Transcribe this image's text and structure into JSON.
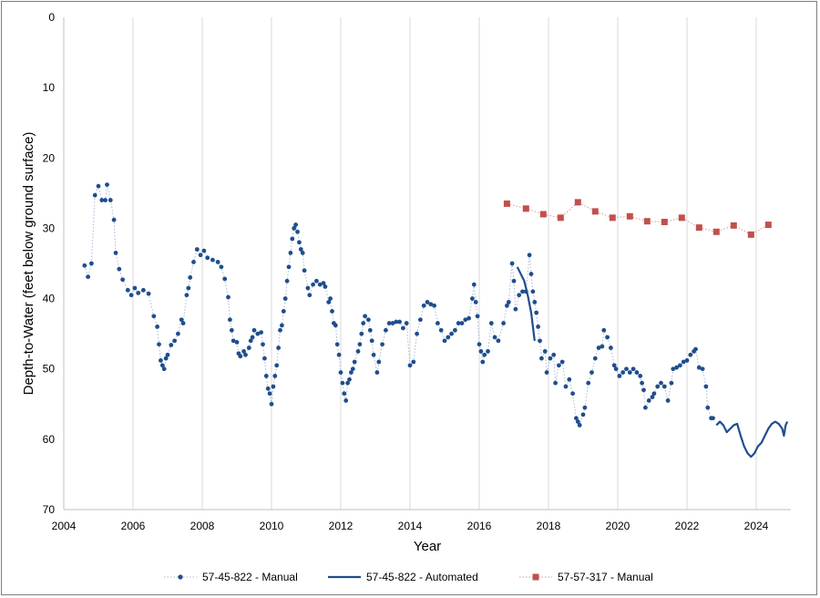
{
  "chart_data": {
    "type": "scatter",
    "title": "",
    "xlabel": "Year",
    "ylabel": "Depth-to-Water (feet below ground surface)",
    "xlim": [
      2004,
      2025
    ],
    "ylim": [
      0,
      70
    ],
    "y_inverted": true,
    "grid": "vertical",
    "legend_position": "bottom",
    "x_ticks": [
      "2004",
      "2006",
      "2008",
      "2010",
      "2012",
      "2014",
      "2016",
      "2018",
      "2020",
      "2022",
      "2024"
    ],
    "y_ticks": [
      "0",
      "10",
      "20",
      "30",
      "40",
      "50",
      "60",
      "70"
    ],
    "series": [
      {
        "name": "57-45-822 - Manual",
        "color": "#1f4e8c",
        "style": "dotted-line-circle-markers",
        "points": [
          [
            2004.6,
            35.3
          ],
          [
            2004.7,
            36.9
          ],
          [
            2004.8,
            35.0
          ],
          [
            2004.9,
            25.3
          ],
          [
            2005.0,
            24.0
          ],
          [
            2005.1,
            26.0
          ],
          [
            2005.2,
            26.0
          ],
          [
            2005.25,
            23.8
          ],
          [
            2005.35,
            26.0
          ],
          [
            2005.45,
            28.8
          ],
          [
            2005.5,
            33.5
          ],
          [
            2005.6,
            35.8
          ],
          [
            2005.7,
            37.3
          ],
          [
            2005.85,
            38.8
          ],
          [
            2005.95,
            39.5
          ],
          [
            2006.05,
            38.5
          ],
          [
            2006.15,
            39.2
          ],
          [
            2006.3,
            38.8
          ],
          [
            2006.45,
            39.3
          ],
          [
            2006.6,
            42.5
          ],
          [
            2006.7,
            44.0
          ],
          [
            2006.75,
            46.5
          ],
          [
            2006.8,
            48.8
          ],
          [
            2006.85,
            49.5
          ],
          [
            2006.9,
            50.0
          ],
          [
            2006.95,
            48.5
          ],
          [
            2007.0,
            48.0
          ],
          [
            2007.1,
            46.6
          ],
          [
            2007.2,
            46.0
          ],
          [
            2007.3,
            45.0
          ],
          [
            2007.4,
            43.0
          ],
          [
            2007.45,
            43.5
          ],
          [
            2007.55,
            39.5
          ],
          [
            2007.6,
            38.5
          ],
          [
            2007.65,
            37.0
          ],
          [
            2007.75,
            34.8
          ],
          [
            2007.85,
            33.0
          ],
          [
            2007.95,
            33.8
          ],
          [
            2008.05,
            33.2
          ],
          [
            2008.15,
            34.2
          ],
          [
            2008.3,
            34.5
          ],
          [
            2008.45,
            34.8
          ],
          [
            2008.55,
            35.5
          ],
          [
            2008.65,
            37.2
          ],
          [
            2008.75,
            39.8
          ],
          [
            2008.8,
            43.0
          ],
          [
            2008.85,
            44.5
          ],
          [
            2008.9,
            46.0
          ],
          [
            2009.0,
            46.2
          ],
          [
            2009.05,
            47.8
          ],
          [
            2009.1,
            48.2
          ],
          [
            2009.2,
            47.5
          ],
          [
            2009.25,
            48.0
          ],
          [
            2009.35,
            47.0
          ],
          [
            2009.4,
            46.0
          ],
          [
            2009.45,
            45.5
          ],
          [
            2009.5,
            44.5
          ],
          [
            2009.6,
            45.0
          ],
          [
            2009.7,
            44.8
          ],
          [
            2009.75,
            46.5
          ],
          [
            2009.8,
            48.5
          ],
          [
            2009.85,
            51.0
          ],
          [
            2009.9,
            52.8
          ],
          [
            2009.95,
            53.5
          ],
          [
            2010.0,
            55.0
          ],
          [
            2010.05,
            52.5
          ],
          [
            2010.1,
            51.0
          ],
          [
            2010.15,
            49.5
          ],
          [
            2010.2,
            47.0
          ],
          [
            2010.25,
            44.5
          ],
          [
            2010.3,
            43.8
          ],
          [
            2010.35,
            41.8
          ],
          [
            2010.4,
            40.0
          ],
          [
            2010.45,
            37.5
          ],
          [
            2010.5,
            35.5
          ],
          [
            2010.55,
            33.5
          ],
          [
            2010.6,
            31.5
          ],
          [
            2010.65,
            30.0
          ],
          [
            2010.7,
            29.5
          ],
          [
            2010.75,
            30.5
          ],
          [
            2010.8,
            32.0
          ],
          [
            2010.85,
            33.0
          ],
          [
            2010.9,
            33.5
          ],
          [
            2010.95,
            36.0
          ],
          [
            2011.05,
            38.5
          ],
          [
            2011.1,
            39.5
          ],
          [
            2011.2,
            38.0
          ],
          [
            2011.3,
            37.5
          ],
          [
            2011.4,
            38.0
          ],
          [
            2011.5,
            37.8
          ],
          [
            2011.55,
            38.3
          ],
          [
            2011.65,
            40.5
          ],
          [
            2011.7,
            40.0
          ],
          [
            2011.75,
            41.8
          ],
          [
            2011.8,
            43.5
          ],
          [
            2011.85,
            43.8
          ],
          [
            2011.9,
            46.5
          ],
          [
            2011.95,
            48.0
          ],
          [
            2012.0,
            50.5
          ],
          [
            2012.05,
            52.0
          ],
          [
            2012.1,
            53.5
          ],
          [
            2012.15,
            54.5
          ],
          [
            2012.2,
            52.0
          ],
          [
            2012.25,
            51.5
          ],
          [
            2012.3,
            50.5
          ],
          [
            2012.35,
            50.0
          ],
          [
            2012.4,
            49.0
          ],
          [
            2012.5,
            47.5
          ],
          [
            2012.55,
            46.5
          ],
          [
            2012.6,
            45.0
          ],
          [
            2012.65,
            43.5
          ],
          [
            2012.7,
            42.5
          ],
          [
            2012.8,
            43.0
          ],
          [
            2012.85,
            44.5
          ],
          [
            2012.9,
            46.0
          ],
          [
            2012.95,
            48.0
          ],
          [
            2013.05,
            50.5
          ],
          [
            2013.1,
            49.0
          ],
          [
            2013.2,
            46.5
          ],
          [
            2013.3,
            44.5
          ],
          [
            2013.4,
            43.5
          ],
          [
            2013.5,
            43.5
          ],
          [
            2013.6,
            43.3
          ],
          [
            2013.7,
            43.3
          ],
          [
            2013.8,
            44.2
          ],
          [
            2013.9,
            43.5
          ],
          [
            2014.0,
            49.5
          ],
          [
            2014.1,
            49.0
          ],
          [
            2014.2,
            45.0
          ],
          [
            2014.3,
            43.0
          ],
          [
            2014.4,
            41.0
          ],
          [
            2014.5,
            40.5
          ],
          [
            2014.6,
            40.8
          ],
          [
            2014.7,
            41.0
          ],
          [
            2014.8,
            43.5
          ],
          [
            2014.9,
            44.5
          ],
          [
            2015.0,
            46.0
          ],
          [
            2015.1,
            45.5
          ],
          [
            2015.2,
            45.0
          ],
          [
            2015.3,
            44.5
          ],
          [
            2015.4,
            43.5
          ],
          [
            2015.5,
            43.5
          ],
          [
            2015.6,
            43.0
          ],
          [
            2015.7,
            42.8
          ],
          [
            2015.8,
            40.0
          ],
          [
            2015.85,
            38.0
          ],
          [
            2015.9,
            40.5
          ],
          [
            2015.95,
            42.5
          ],
          [
            2016.0,
            46.5
          ],
          [
            2016.05,
            47.5
          ],
          [
            2016.1,
            49.0
          ],
          [
            2016.15,
            48.0
          ],
          [
            2016.25,
            47.5
          ],
          [
            2016.35,
            43.5
          ],
          [
            2016.45,
            45.5
          ],
          [
            2016.55,
            46.0
          ],
          [
            2016.7,
            43.5
          ],
          [
            2016.8,
            41.0
          ],
          [
            2016.85,
            40.5
          ],
          [
            2016.95,
            35.0
          ],
          [
            2017.0,
            37.5
          ],
          [
            2017.05,
            41.5
          ],
          [
            2017.15,
            39.5
          ],
          [
            2017.25,
            39.0
          ],
          [
            2017.35,
            39.0
          ],
          [
            2017.45,
            33.8
          ],
          [
            2017.5,
            36.5
          ],
          [
            2017.55,
            39.0
          ],
          [
            2017.6,
            40.5
          ],
          [
            2017.65,
            42.0
          ],
          [
            2017.7,
            44.0
          ],
          [
            2017.75,
            46.0
          ],
          [
            2017.8,
            48.5
          ],
          [
            2017.9,
            47.5
          ],
          [
            2017.95,
            50.5
          ],
          [
            2018.05,
            48.5
          ],
          [
            2018.15,
            48.0
          ],
          [
            2018.2,
            52.0
          ],
          [
            2018.3,
            49.5
          ],
          [
            2018.4,
            49.0
          ],
          [
            2018.5,
            52.5
          ],
          [
            2018.6,
            51.5
          ],
          [
            2018.7,
            53.5
          ],
          [
            2018.8,
            57.0
          ],
          [
            2018.85,
            57.5
          ],
          [
            2018.9,
            58.0
          ],
          [
            2019.0,
            56.5
          ],
          [
            2019.05,
            55.5
          ],
          [
            2019.15,
            52.0
          ],
          [
            2019.25,
            50.5
          ],
          [
            2019.35,
            48.5
          ],
          [
            2019.45,
            47.0
          ],
          [
            2019.55,
            46.8
          ],
          [
            2019.6,
            44.5
          ],
          [
            2019.7,
            45.5
          ],
          [
            2019.8,
            47.0
          ],
          [
            2019.9,
            49.5
          ],
          [
            2019.95,
            50.0
          ],
          [
            2020.05,
            51.0
          ],
          [
            2020.15,
            50.5
          ],
          [
            2020.25,
            50.0
          ],
          [
            2020.35,
            50.5
          ],
          [
            2020.45,
            50.0
          ],
          [
            2020.55,
            50.5
          ],
          [
            2020.65,
            51.0
          ],
          [
            2020.7,
            52.0
          ],
          [
            2020.75,
            53.0
          ],
          [
            2020.8,
            55.5
          ],
          [
            2020.9,
            54.5
          ],
          [
            2021.0,
            54.0
          ],
          [
            2021.05,
            53.5
          ],
          [
            2021.15,
            52.5
          ],
          [
            2021.25,
            52.0
          ],
          [
            2021.35,
            52.5
          ],
          [
            2021.45,
            54.5
          ],
          [
            2021.55,
            52.0
          ],
          [
            2021.6,
            50.0
          ],
          [
            2021.7,
            49.8
          ],
          [
            2021.8,
            49.5
          ],
          [
            2021.9,
            49.0
          ],
          [
            2022.0,
            48.8
          ],
          [
            2022.1,
            48.0
          ],
          [
            2022.2,
            47.5
          ],
          [
            2022.25,
            47.2
          ],
          [
            2022.35,
            49.8
          ],
          [
            2022.45,
            50.0
          ],
          [
            2022.55,
            52.5
          ],
          [
            2022.6,
            55.5
          ],
          [
            2022.7,
            57.0
          ],
          [
            2022.75,
            57.0
          ]
        ]
      },
      {
        "name": "57-45-822 - Automated",
        "color": "#1f4e8c",
        "style": "solid-line",
        "points": [
          [
            2017.1,
            35.5
          ],
          [
            2017.2,
            36.5
          ],
          [
            2017.3,
            37.5
          ],
          [
            2017.4,
            39.5
          ],
          [
            2017.5,
            42.0
          ],
          [
            2017.55,
            44.0
          ],
          [
            2017.6,
            46.0
          ],
          [
            2022.85,
            58.0
          ],
          [
            2022.95,
            57.5
          ],
          [
            2023.05,
            58.0
          ],
          [
            2023.15,
            59.0
          ],
          [
            2023.25,
            58.5
          ],
          [
            2023.35,
            58.0
          ],
          [
            2023.45,
            57.8
          ],
          [
            2023.55,
            59.5
          ],
          [
            2023.65,
            61.0
          ],
          [
            2023.75,
            62.0
          ],
          [
            2023.85,
            62.5
          ],
          [
            2023.95,
            62.0
          ],
          [
            2024.05,
            61.0
          ],
          [
            2024.15,
            60.5
          ],
          [
            2024.25,
            59.5
          ],
          [
            2024.35,
            58.5
          ],
          [
            2024.45,
            57.8
          ],
          [
            2024.55,
            57.5
          ],
          [
            2024.65,
            57.8
          ],
          [
            2024.75,
            58.5
          ],
          [
            2024.8,
            59.5
          ],
          [
            2024.85,
            58.0
          ],
          [
            2024.9,
            57.5
          ]
        ]
      },
      {
        "name": "57-57-317 - Manual",
        "color": "#c0504d",
        "style": "dotted-line-square-markers",
        "points": [
          [
            2016.8,
            26.5
          ],
          [
            2017.35,
            27.2
          ],
          [
            2017.85,
            28.0
          ],
          [
            2018.35,
            28.5
          ],
          [
            2018.85,
            26.3
          ],
          [
            2019.35,
            27.6
          ],
          [
            2019.85,
            28.5
          ],
          [
            2020.35,
            28.3
          ],
          [
            2020.85,
            29.0
          ],
          [
            2021.35,
            29.1
          ],
          [
            2021.85,
            28.5
          ],
          [
            2022.35,
            29.9
          ],
          [
            2022.85,
            30.5
          ],
          [
            2023.35,
            29.6
          ],
          [
            2023.85,
            30.9
          ],
          [
            2024.35,
            29.5
          ]
        ]
      }
    ]
  }
}
